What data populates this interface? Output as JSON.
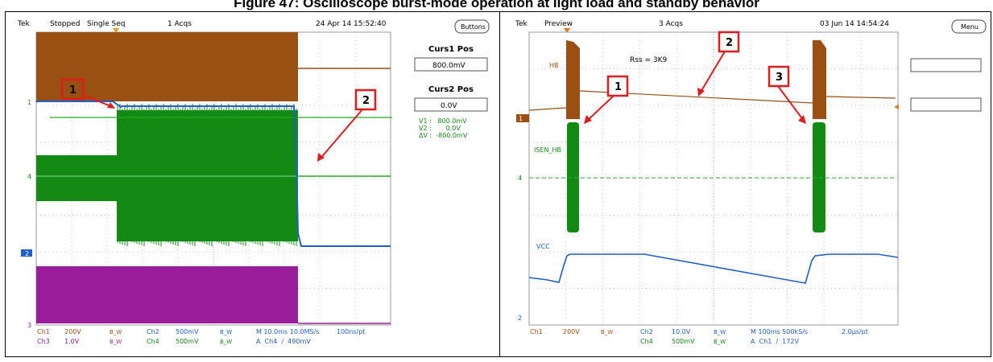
{
  "caption": "Figure 47: Oscilloscope burst-mode operation at light load and standby behavior",
  "left_scope": {
    "brand": "Tek",
    "status": "Stopped",
    "mode": "Single Seq",
    "acqs": "1 Acqs",
    "datetime": "24 Apr 14 15:52:40",
    "menu_button": "Buttons",
    "curs1_title": "Curs1 Pos",
    "curs1_value": "800.0mV",
    "curs2_title": "Curs2 Pos",
    "curs2_value": "0.0V",
    "v1": "V1 :   800.0mV",
    "v2": "V2 :       0.0V",
    "dv": "ΔV :  -800.0mV",
    "ch_markers": [
      "1",
      "4",
      "2",
      "3"
    ],
    "callouts": [
      "1",
      "2"
    ],
    "footer": {
      "r1": [
        {
          "ch": "Ch1",
          "val": "200V",
          "bw": "B_W"
        },
        {
          "ch": "Ch2",
          "val": "500mV",
          "bw": "B_W"
        }
      ],
      "r2": [
        {
          "ch": "Ch3",
          "val": "1.0V",
          "bw": "B_W"
        },
        {
          "ch": "Ch4",
          "val": "500mV",
          "bw": "B_W"
        }
      ],
      "timebase": "M 10.0ms 10.0MS/s",
      "ptrate": "100ns/pt",
      "trigger": "A  Ch4  ∕  490mV"
    },
    "colors": {
      "ch1": "#9a4f13",
      "ch2": "#1f5fc8",
      "ch3": "#9b1d9b",
      "ch4": "#138a13"
    }
  },
  "right_scope": {
    "brand": "Tek",
    "status": "Preview",
    "acqs": "3 Acqs",
    "datetime": "03 Jun 14 14:54:24",
    "menu_button": "Menu",
    "label_hb": "HB",
    "label_rss": "Rss = 3K9",
    "label_isen": "ISEN_HB",
    "label_vcc": "VCC",
    "ch_markers": [
      "1",
      "4",
      "2"
    ],
    "callouts": [
      "1",
      "2",
      "3"
    ],
    "footer": {
      "r1": [
        {
          "ch": "Ch1",
          "val": "200V",
          "bw": "B_W"
        },
        {
          "ch": "Ch2",
          "val": "10.0V",
          "bw": "B_W"
        }
      ],
      "r2": [
        {
          "ch": "",
          "val": "",
          "bw": ""
        },
        {
          "ch": "Ch4",
          "val": "500mV",
          "bw": "B_W"
        }
      ],
      "timebase": "M 100ms 500kS/s",
      "ptrate": "2.0μs/pt",
      "trigger": "A  Ch1  ∕  172V"
    }
  }
}
